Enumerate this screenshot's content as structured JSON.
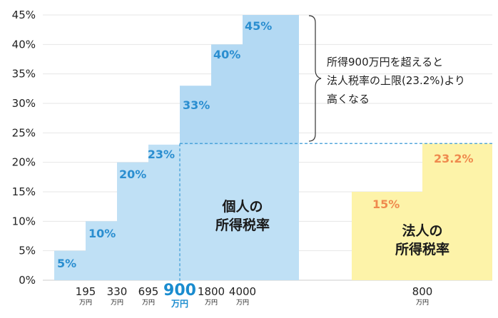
{
  "chart_data": {
    "type": "bar",
    "ylim": [
      0,
      45
    ],
    "yticks": [
      "0%",
      "5%",
      "10%",
      "15%",
      "20%",
      "25%",
      "30%",
      "35%",
      "40%",
      "45%"
    ],
    "series": [
      {
        "name": "個人の所得税率",
        "color": "#bfe0f5",
        "steps": [
          {
            "rate": 5,
            "label": "5%",
            "upper": "195",
            "unit": "万円"
          },
          {
            "rate": 10,
            "label": "10%",
            "upper": "330",
            "unit": "万円"
          },
          {
            "rate": 20,
            "label": "20%",
            "upper": "695",
            "unit": "万円"
          },
          {
            "rate": 23,
            "label": "23%",
            "upper": "900",
            "unit": "万円"
          },
          {
            "rate": 33,
            "label": "33%",
            "upper": "1800",
            "unit": "万円"
          },
          {
            "rate": 40,
            "label": "40%",
            "upper": "4000",
            "unit": "万円"
          },
          {
            "rate": 45,
            "label": "45%",
            "upper": "",
            "unit": ""
          }
        ],
        "name_lines": [
          "個人の",
          "所得税率"
        ]
      },
      {
        "name": "法人の所得税率",
        "color": "#fdf3a9",
        "steps": [
          {
            "rate": 15,
            "label": "15%",
            "upper": "800",
            "unit": "万円"
          },
          {
            "rate": 23.2,
            "label": "23.2%",
            "upper": "",
            "unit": ""
          }
        ],
        "name_lines": [
          "法人の",
          "所得税率"
        ]
      }
    ],
    "highlight_income": {
      "value": "900",
      "unit": "万円",
      "rate": 23.2
    },
    "annotation": [
      "所得900万円を超えると",
      "法人税率の上限(23.2%)より",
      "高くなる"
    ],
    "colors": {
      "individual_fill": "#bfe0f5",
      "individual_fill_top": "#b3d9f3",
      "corporate_fill": "#fdf3a9",
      "individual_text": "#2a8ed0",
      "corporate_text": "#ef8a4e",
      "highlight": "#1a8ccf",
      "dashed_line": "#3a9ad6"
    }
  }
}
